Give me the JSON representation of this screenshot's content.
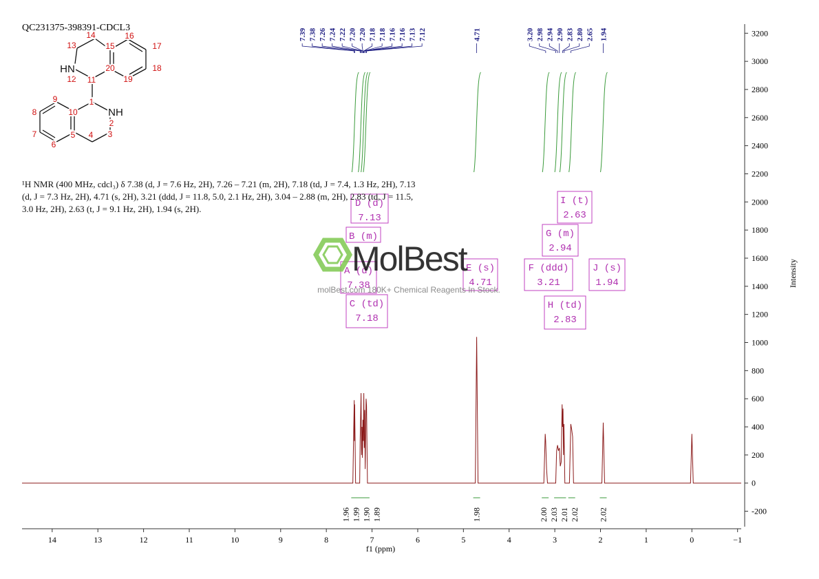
{
  "chart_data": {
    "type": "line",
    "title": "QC231375-398391-CDCL3",
    "description": "¹H NMR (400 MHz, cdcl₃) δ 7.38 (d, J = 7.6 Hz, 2H), 7.26 – 7.21 (m, 2H), 7.18 (td, J = 7.4, 1.3 Hz, 2H), 7.13 (d, J = 7.3 Hz, 2H), 4.71 (s, 2H), 3.21 (ddd, J = 11.8, 5.0, 2.1 Hz, 2H), 3.04 – 2.88 (m, 2H), 2.83 (td, J = 11.5, 3.0 Hz, 2H), 2.63 (t, J = 9.1 Hz, 2H), 1.94 (s, 2H).",
    "x_label": "f1 (ppm)",
    "y_label": "Intensity",
    "xlim": [
      14.66,
      -1.08
    ],
    "ylim": [
      -310,
      3265
    ],
    "xticks": [
      14,
      13,
      12,
      11,
      10,
      9,
      8,
      7,
      6,
      5,
      4,
      3,
      2,
      1,
      0,
      {
        "value": -1,
        "label": "−1"
      }
    ],
    "yticks": [
      -200,
      0,
      200,
      400,
      600,
      800,
      1000,
      1200,
      1400,
      1600,
      1800,
      2000,
      2200,
      2400,
      2600,
      2800,
      3000,
      3200
    ],
    "series": [
      {
        "name": "spectrum",
        "color": "#8b1a1a",
        "x": [
          14.66,
          7.42,
          7.39,
          7.385,
          7.38,
          7.36,
          7.27,
          7.26,
          7.24,
          7.23,
          7.22,
          7.21,
          7.2,
          7.19,
          7.18,
          7.17,
          7.16,
          7.15,
          7.14,
          7.13,
          7.12,
          7.1,
          4.74,
          4.71,
          4.68,
          3.24,
          3.21,
          3.2,
          3.18,
          3.16,
          2.98,
          2.96,
          2.94,
          2.92,
          2.9,
          2.88,
          2.86,
          2.84,
          2.83,
          2.82,
          2.81,
          2.8,
          2.78,
          2.68,
          2.65,
          2.63,
          2.61,
          2.59,
          1.97,
          1.94,
          1.91,
          0.03,
          0,
          -0.03,
          -1.08
        ],
        "values": [
          0,
          0,
          590,
          300,
          560,
          0,
          0,
          300,
          640,
          200,
          400,
          180,
          450,
          300,
          640,
          250,
          520,
          100,
          330,
          600,
          550,
          0,
          0,
          1040,
          0,
          0,
          350,
          300,
          100,
          0,
          0,
          230,
          270,
          230,
          250,
          120,
          150,
          560,
          400,
          530,
          200,
          420,
          0,
          0,
          420,
          380,
          330,
          0,
          0,
          430,
          0,
          0,
          350,
          0,
          0
        ]
      }
    ],
    "peak_labels": [
      7.39,
      7.38,
      7.26,
      7.24,
      7.22,
      {
        "value": 7.2,
        "label": "7.20"
      },
      {
        "value": 7.2,
        "label": "7.20"
      },
      7.18,
      7.18,
      7.16,
      7.16,
      7.13,
      7.12,
      4.71,
      {
        "value": 3.2,
        "label": "3.20"
      },
      2.98,
      2.94,
      {
        "value": 2.9,
        "label": "2.90"
      },
      2.83,
      {
        "value": 2.8,
        "label": "2.80"
      },
      2.65,
      1.94
    ],
    "integrals": {
      "x": [
        7.38,
        7.24,
        7.18,
        7.13,
        4.71,
        3.21,
        2.94,
        2.83,
        2.63,
        1.94
      ],
      "values": [
        1.96,
        1.99,
        {
          "value": 1.9,
          "label": "1.90"
        },
        1.89,
        1.98,
        {
          "value": 2,
          "label": "2.00"
        },
        2.03,
        2.01,
        2.02,
        2.02
      ]
    },
    "multiplets": [
      {
        "label": "A (d)",
        "shift": 7.38
      },
      {
        "label": "B (m)"
      },
      {
        "label": "C (td)",
        "shift": 7.18
      },
      {
        "label": "D (d)",
        "shift": 7.13
      },
      {
        "label": "E (s)",
        "shift": 4.71
      },
      {
        "label": "F (ddd)",
        "shift": 3.21
      },
      {
        "label": "G (m)",
        "shift": 2.94
      },
      {
        "label": "H (td)",
        "shift": 2.83
      },
      {
        "label": "I (t)",
        "shift": 2.63
      },
      {
        "label": "J (s)",
        "shift": 1.94
      }
    ],
    "structure": {
      "atoms": [
        "1",
        "2",
        "3",
        "4",
        "5",
        "6",
        "7",
        "8",
        "9",
        "10",
        "11",
        "12",
        "13",
        "14",
        "15",
        "16",
        "17",
        "18",
        "19",
        "20"
      ],
      "amines": [
        "HN",
        "NH"
      ]
    },
    "watermark": {
      "brand": "MolBest",
      "slogan": "molBest.com 180K+ Chemical Reagents In Stock."
    }
  }
}
